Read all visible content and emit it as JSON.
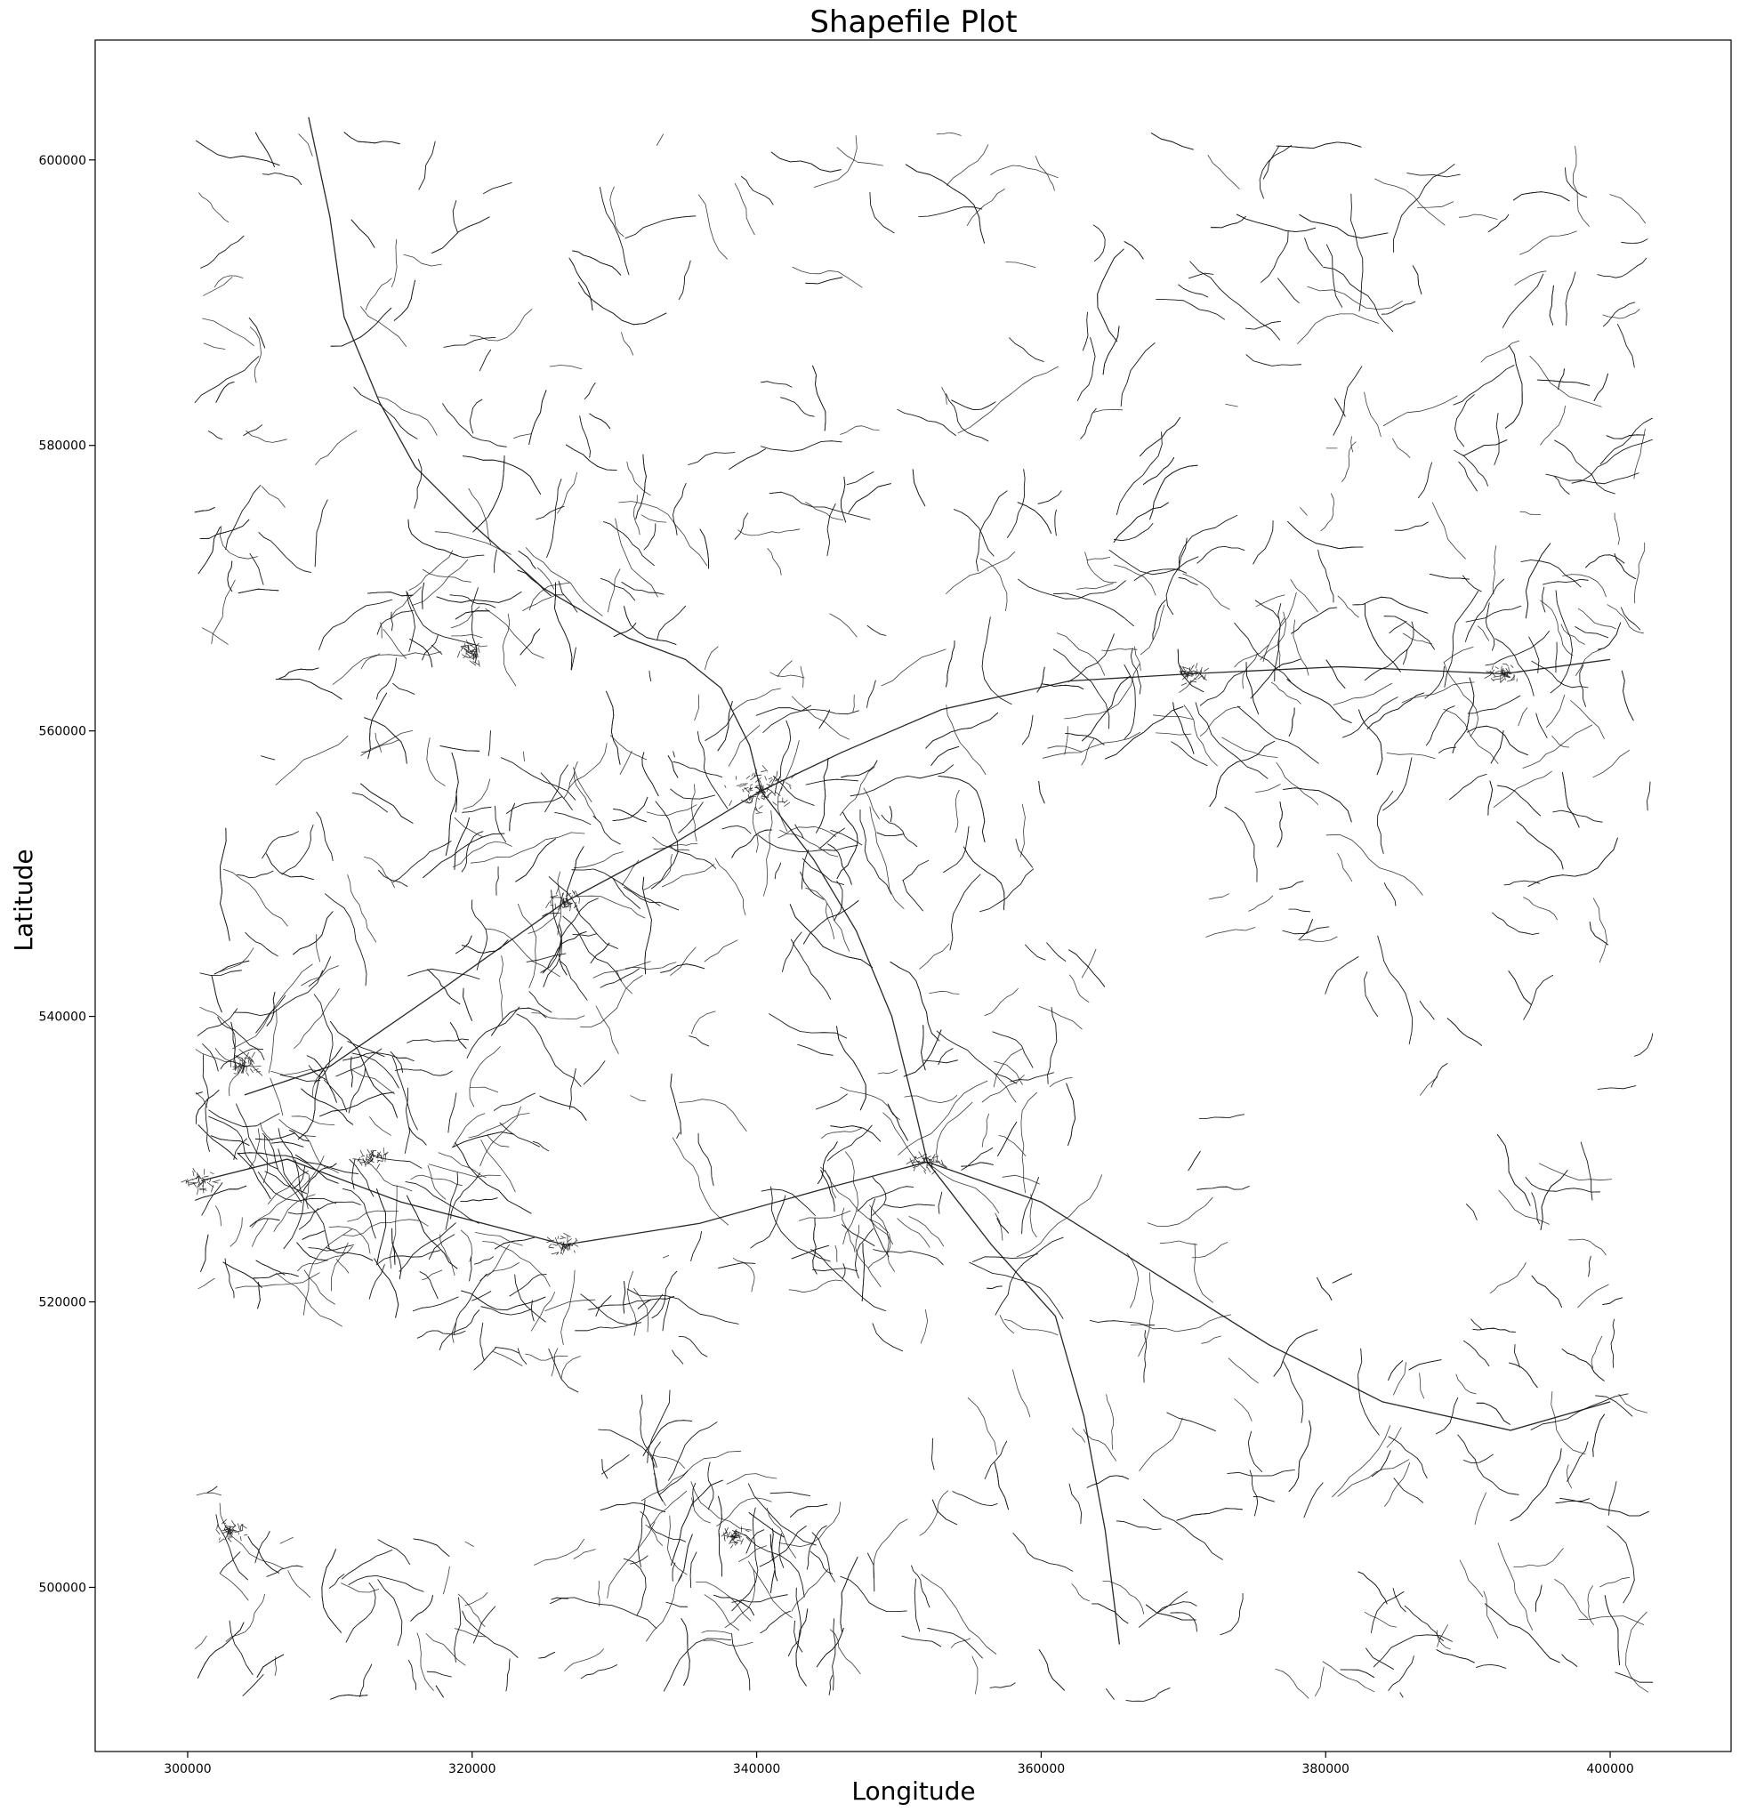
{
  "chart_data": {
    "type": "map",
    "title": "Shapefile Plot",
    "xlabel": "Longitude",
    "ylabel": "Latitude",
    "xlim": [
      293500,
      408500
    ],
    "ylim": [
      488500,
      608400
    ],
    "xticks": [
      300000,
      320000,
      340000,
      360000,
      380000,
      400000
    ],
    "yticks": [
      500000,
      520000,
      540000,
      560000,
      580000,
      600000
    ],
    "line_color": "#1a1a1a",
    "grid": false,
    "legend": false,
    "features": {
      "geometry": "polylines",
      "description_extent": {
        "x": [
          300000,
          403000
        ],
        "y": [
          492000,
          602000
        ]
      },
      "towns": [
        {
          "x": 340300,
          "y": 555800
        },
        {
          "x": 352000,
          "y": 529800
        },
        {
          "x": 320000,
          "y": 565500
        },
        {
          "x": 313000,
          "y": 530000
        },
        {
          "x": 326500,
          "y": 548000
        },
        {
          "x": 326500,
          "y": 524000
        },
        {
          "x": 370500,
          "y": 564000
        },
        {
          "x": 392500,
          "y": 564000
        },
        {
          "x": 304000,
          "y": 536500
        },
        {
          "x": 303000,
          "y": 504000
        },
        {
          "x": 301000,
          "y": 528500
        },
        {
          "x": 338500,
          "y": 503500
        }
      ],
      "main_roads": [
        [
          [
            308500,
            603000
          ],
          [
            310000,
            596000
          ],
          [
            311000,
            589000
          ],
          [
            313500,
            583000
          ],
          [
            316000,
            578500
          ],
          [
            320000,
            574500
          ],
          [
            325000,
            570000
          ],
          [
            331000,
            566500
          ],
          [
            335000,
            565000
          ],
          [
            337500,
            563000
          ],
          [
            339500,
            559000
          ],
          [
            340300,
            555800
          ]
        ],
        [
          [
            340300,
            555800
          ],
          [
            344000,
            551000
          ],
          [
            347000,
            546000
          ],
          [
            349500,
            540000
          ],
          [
            351000,
            534000
          ],
          [
            352000,
            529800
          ]
        ],
        [
          [
            352000,
            529800
          ],
          [
            356500,
            524000
          ],
          [
            361000,
            519000
          ],
          [
            363000,
            512000
          ],
          [
            364500,
            504000
          ],
          [
            365500,
            496000
          ]
        ],
        [
          [
            340300,
            555800
          ],
          [
            346000,
            558500
          ],
          [
            353000,
            561500
          ],
          [
            362000,
            563500
          ],
          [
            370500,
            564000
          ],
          [
            381000,
            564500
          ],
          [
            392500,
            564000
          ],
          [
            400000,
            565000
          ]
        ],
        [
          [
            340300,
            555800
          ],
          [
            334000,
            552000
          ],
          [
            326500,
            548000
          ],
          [
            318000,
            542000
          ],
          [
            310000,
            536500
          ],
          [
            304000,
            534500
          ]
        ],
        [
          [
            352000,
            529800
          ],
          [
            345000,
            528000
          ],
          [
            336000,
            525500
          ],
          [
            326500,
            524000
          ],
          [
            315000,
            527000
          ],
          [
            307000,
            530000
          ],
          [
            301000,
            528500
          ]
        ],
        [
          [
            352000,
            529800
          ],
          [
            360000,
            527000
          ],
          [
            368000,
            522000
          ],
          [
            376000,
            517000
          ],
          [
            384000,
            513000
          ],
          [
            393000,
            511000
          ],
          [
            400000,
            513000
          ]
        ]
      ]
    }
  }
}
